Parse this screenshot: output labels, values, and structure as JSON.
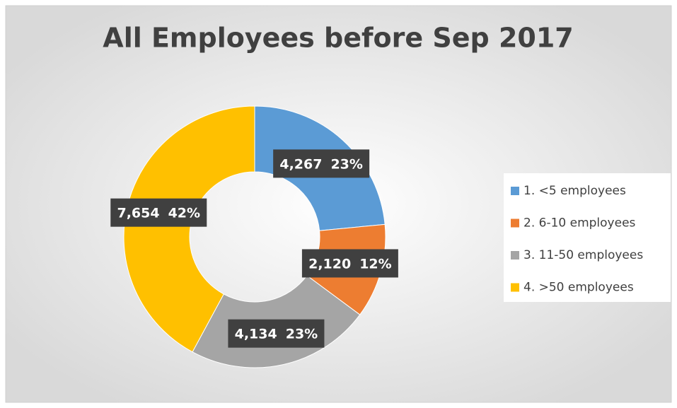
{
  "chart_data": {
    "type": "donut",
    "title": "All Employees before Sep 2017",
    "categories": [
      "1.  <5 employees",
      "2.  6-10 employees",
      "3.  11-50 employees",
      "4.  >50 employees"
    ],
    "values": [
      4267,
      2120,
      4134,
      7654
    ],
    "value_labels": [
      "4,267",
      "2,120",
      "4,134",
      "7,654"
    ],
    "percent_labels": [
      "23%",
      "12%",
      "23%",
      "42%"
    ],
    "colors": [
      "#5b9bd5",
      "#ed7d31",
      "#a5a5a5",
      "#ffc000"
    ],
    "legend": "right"
  }
}
